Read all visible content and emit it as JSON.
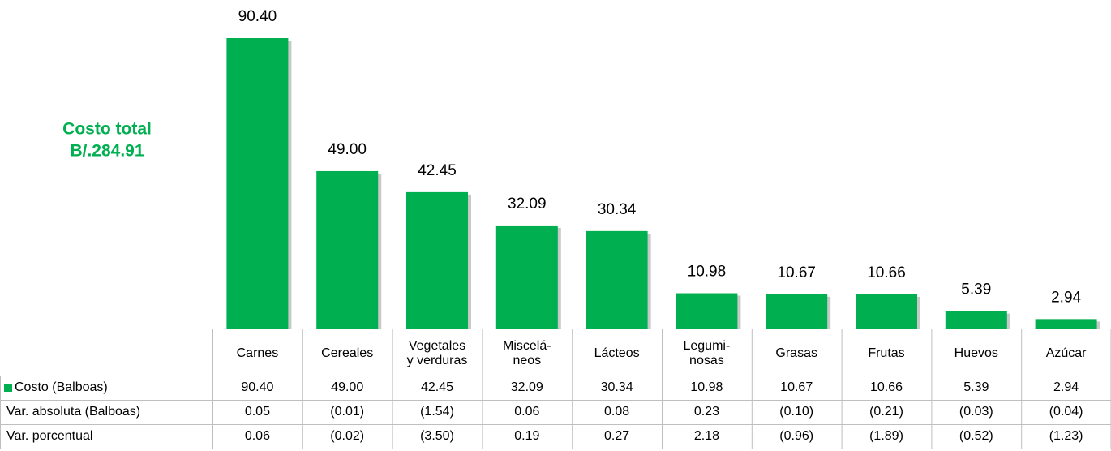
{
  "chart_data": {
    "type": "bar",
    "annotation": [
      "Costo total",
      "B/.284.91"
    ],
    "categories": [
      [
        "Carnes"
      ],
      [
        "Cereales"
      ],
      [
        "Vegetales",
        "y verduras"
      ],
      [
        "Miscelá-",
        "neos"
      ],
      [
        "Lácteos"
      ],
      [
        "Legumi-",
        "nosas"
      ],
      [
        "Grasas"
      ],
      [
        "Frutas"
      ],
      [
        "Huevos"
      ],
      [
        "Azúcar"
      ]
    ],
    "series": [
      {
        "name": "Costo (Balboas)",
        "color": "#00b050",
        "values": [
          90.4,
          49,
          42.45,
          32.09,
          30.34,
          10.98,
          10.67,
          10.66,
          5.39,
          2.94
        ],
        "value_labels": [
          "90.40",
          "49.00",
          "42.45",
          "32.09",
          "30.34",
          "10.98",
          "10.67",
          "10.66",
          "5.39",
          "2.94"
        ]
      }
    ],
    "table_rows": [
      {
        "label": "Var. absoluta (Balboas)",
        "values": [
          "0.05",
          "(0.01)",
          "(1.54)",
          "0.06",
          "0.08",
          "0.23",
          "(0.10)",
          "(0.21)",
          "(0.03)",
          "(0.04)"
        ]
      },
      {
        "label": "Var. porcentual",
        "values": [
          "0.06",
          "(0.02)",
          "(3.50)",
          "0.19",
          "0.27",
          "2.18",
          "(0.96)",
          "(1.89)",
          "(0.52)",
          "(1.23)"
        ]
      }
    ]
  }
}
